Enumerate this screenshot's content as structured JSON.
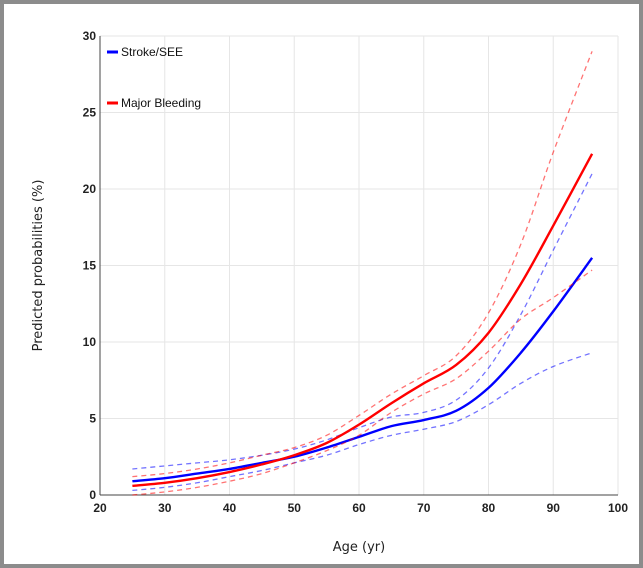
{
  "chart_data": {
    "type": "line",
    "xlabel": "Age (yr)",
    "ylabel": "Predicted probabilities (%)",
    "xlim": [
      20,
      100
    ],
    "ylim": [
      0,
      30
    ],
    "xticks": [
      20,
      30,
      40,
      50,
      60,
      70,
      80,
      90,
      100
    ],
    "yticks": [
      0,
      5,
      10,
      15,
      20,
      25,
      30
    ],
    "grid": true,
    "legend_position": "top-left",
    "legend": [
      "Stroke/SEE",
      "Major Bleeding"
    ],
    "series": [
      {
        "name": "Stroke/SEE",
        "color": "#0000ff",
        "x": [
          25,
          30,
          35,
          40,
          45,
          50,
          55,
          60,
          65,
          70,
          75,
          80,
          85,
          90,
          96
        ],
        "y": [
          0.9,
          1.1,
          1.4,
          1.7,
          2.1,
          2.5,
          3.1,
          3.8,
          4.5,
          4.9,
          5.5,
          7.0,
          9.3,
          12.0,
          15.5
        ],
        "lower": [
          0.3,
          0.5,
          0.8,
          1.2,
          1.6,
          2.1,
          2.6,
          3.3,
          3.9,
          4.3,
          4.8,
          5.9,
          7.3,
          8.4,
          9.3
        ],
        "upper": [
          1.7,
          1.9,
          2.1,
          2.3,
          2.6,
          3.0,
          3.6,
          4.4,
          5.1,
          5.4,
          6.2,
          8.3,
          11.8,
          16.0,
          21.0
        ]
      },
      {
        "name": "Major Bleeding",
        "color": "#ff0000",
        "x": [
          25,
          30,
          35,
          40,
          45,
          50,
          55,
          60,
          65,
          70,
          75,
          80,
          85,
          90,
          96
        ],
        "y": [
          0.6,
          0.8,
          1.1,
          1.5,
          2.0,
          2.6,
          3.4,
          4.6,
          6.0,
          7.3,
          8.5,
          10.6,
          13.8,
          17.6,
          22.3
        ],
        "lower": [
          0.0,
          0.2,
          0.5,
          0.9,
          1.4,
          2.1,
          2.9,
          3.9,
          5.4,
          6.6,
          7.6,
          9.4,
          11.5,
          12.9,
          14.7
        ],
        "upper": [
          1.2,
          1.4,
          1.7,
          2.1,
          2.6,
          3.1,
          3.9,
          5.2,
          6.6,
          7.8,
          9.1,
          11.9,
          16.4,
          22.4,
          29.0
        ]
      }
    ]
  }
}
